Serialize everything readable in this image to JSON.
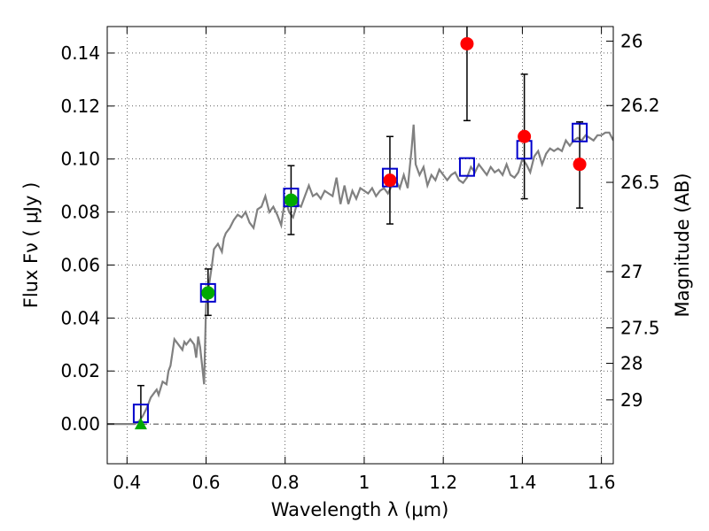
{
  "chart_data": {
    "type": "scatter",
    "xlabel": "Wavelength  λ (μm)",
    "ylabel": "Flux  Fν  ( μJy )",
    "ylabel_right": "Magnitude (AB)",
    "xlim": [
      0.35,
      1.63
    ],
    "ylim": [
      -0.015,
      0.15
    ],
    "grid": true,
    "x_ticks": [
      {
        "value": 0.4,
        "label": "0.4"
      },
      {
        "value": 0.6,
        "label": "0.6"
      },
      {
        "value": 0.8,
        "label": "0.8"
      },
      {
        "value": 1.0,
        "label": "1"
      },
      {
        "value": 1.2,
        "label": "1.2"
      },
      {
        "value": 1.4,
        "label": "1.4"
      },
      {
        "value": 1.6,
        "label": "1.6"
      }
    ],
    "y_ticks": [
      {
        "value": 0.0,
        "label": "0.00"
      },
      {
        "value": 0.02,
        "label": "0.02"
      },
      {
        "value": 0.04,
        "label": "0.04"
      },
      {
        "value": 0.06,
        "label": "0.06"
      },
      {
        "value": 0.08,
        "label": "0.08"
      },
      {
        "value": 0.1,
        "label": "0.10"
      },
      {
        "value": 0.12,
        "label": "0.12"
      },
      {
        "value": 0.14,
        "label": "0.14"
      }
    ],
    "right_ticks": [
      {
        "flux": 0.1445,
        "label": "26"
      },
      {
        "flux": 0.1202,
        "label": "26.2"
      },
      {
        "flux": 0.0912,
        "label": "26.5"
      },
      {
        "flux": 0.0575,
        "label": "27"
      },
      {
        "flux": 0.0363,
        "label": "27.5"
      },
      {
        "flux": 0.0229,
        "label": "28"
      },
      {
        "flux": 0.0091,
        "label": "29"
      }
    ],
    "zero_line": 0.0,
    "colors": {
      "model": "#808080",
      "model_photometry": "#0000cc",
      "observed_red": "#ff0000",
      "observed_green": "#00aa00",
      "error_bar": "#000000"
    },
    "series": [
      {
        "kind": "model_spectrum",
        "x": [
          0.35,
          0.37,
          0.39,
          0.405,
          0.415,
          0.42,
          0.43,
          0.44,
          0.45,
          0.46,
          0.47,
          0.475,
          0.48,
          0.49,
          0.5,
          0.505,
          0.51,
          0.515,
          0.52,
          0.53,
          0.54,
          0.545,
          0.55,
          0.56,
          0.57,
          0.575,
          0.58,
          0.585,
          0.59,
          0.595,
          0.6,
          0.605,
          0.61,
          0.615,
          0.62,
          0.63,
          0.64,
          0.645,
          0.65,
          0.66,
          0.67,
          0.68,
          0.69,
          0.7,
          0.71,
          0.72,
          0.73,
          0.74,
          0.75,
          0.76,
          0.77,
          0.78,
          0.79,
          0.8,
          0.81,
          0.82,
          0.83,
          0.84,
          0.85,
          0.86,
          0.87,
          0.88,
          0.89,
          0.9,
          0.91,
          0.92,
          0.93,
          0.94,
          0.95,
          0.96,
          0.97,
          0.98,
          0.99,
          1.0,
          1.01,
          1.02,
          1.03,
          1.04,
          1.05,
          1.06,
          1.07,
          1.08,
          1.09,
          1.1,
          1.11,
          1.12,
          1.125,
          1.13,
          1.14,
          1.15,
          1.16,
          1.17,
          1.18,
          1.19,
          1.2,
          1.21,
          1.22,
          1.23,
          1.24,
          1.25,
          1.26,
          1.27,
          1.28,
          1.29,
          1.3,
          1.31,
          1.32,
          1.33,
          1.34,
          1.35,
          1.36,
          1.37,
          1.38,
          1.39,
          1.4,
          1.41,
          1.42,
          1.43,
          1.44,
          1.45,
          1.46,
          1.47,
          1.48,
          1.49,
          1.5,
          1.51,
          1.52,
          1.53,
          1.54,
          1.55,
          1.56,
          1.57,
          1.58,
          1.59,
          1.6,
          1.61,
          1.62,
          1.63
        ],
        "y": [
          0.0,
          0.0,
          0.0,
          0.0,
          0.0,
          0.0,
          0.001,
          0.003,
          0.006,
          0.01,
          0.012,
          0.013,
          0.011,
          0.016,
          0.015,
          0.02,
          0.022,
          0.027,
          0.032,
          0.03,
          0.028,
          0.031,
          0.03,
          0.032,
          0.03,
          0.025,
          0.033,
          0.029,
          0.022,
          0.015,
          0.045,
          0.05,
          0.055,
          0.06,
          0.066,
          0.068,
          0.065,
          0.07,
          0.072,
          0.074,
          0.077,
          0.079,
          0.078,
          0.08,
          0.076,
          0.074,
          0.081,
          0.082,
          0.086,
          0.08,
          0.082,
          0.079,
          0.075,
          0.085,
          0.08,
          0.078,
          0.083,
          0.082,
          0.086,
          0.09,
          0.086,
          0.087,
          0.085,
          0.088,
          0.087,
          0.086,
          0.093,
          0.083,
          0.09,
          0.083,
          0.088,
          0.085,
          0.089,
          0.088,
          0.087,
          0.089,
          0.086,
          0.088,
          0.089,
          0.087,
          0.09,
          0.092,
          0.089,
          0.094,
          0.089,
          0.104,
          0.113,
          0.098,
          0.094,
          0.097,
          0.09,
          0.094,
          0.092,
          0.096,
          0.094,
          0.092,
          0.094,
          0.095,
          0.092,
          0.091,
          0.093,
          0.097,
          0.095,
          0.098,
          0.096,
          0.094,
          0.097,
          0.095,
          0.096,
          0.094,
          0.098,
          0.094,
          0.093,
          0.095,
          0.1,
          0.098,
          0.095,
          0.101,
          0.103,
          0.098,
          0.102,
          0.104,
          0.103,
          0.104,
          0.103,
          0.107,
          0.105,
          0.107,
          0.108,
          0.107,
          0.109,
          0.108,
          0.107,
          0.109,
          0.109,
          0.11,
          0.11,
          0.107
        ]
      },
      {
        "kind": "model_photometry",
        "x": [
          0.435,
          0.605,
          0.815,
          1.065,
          1.26,
          1.405,
          1.545
        ],
        "y": [
          0.004,
          0.0495,
          0.0855,
          0.093,
          0.097,
          0.1035,
          0.11
        ]
      },
      {
        "kind": "observed",
        "points": [
          {
            "x": 0.435,
            "y": 0.0,
            "marker": "triangle",
            "color": "green",
            "err_up": 0.0145,
            "err_down": 0.0
          },
          {
            "x": 0.605,
            "y": 0.0495,
            "marker": "circle",
            "color": "green",
            "err_up": 0.0585,
            "err_down": 0.041
          },
          {
            "x": 0.815,
            "y": 0.0845,
            "marker": "circle",
            "color": "green",
            "err_up": 0.0975,
            "err_down": 0.0715
          },
          {
            "x": 1.065,
            "y": 0.092,
            "marker": "circle",
            "color": "red",
            "err_up": 0.1085,
            "err_down": 0.0755
          },
          {
            "x": 1.26,
            "y": 0.1435,
            "marker": "circle",
            "color": "red",
            "err_up": 0.152,
            "err_down": 0.1145
          },
          {
            "x": 1.405,
            "y": 0.1085,
            "marker": "circle",
            "color": "red",
            "err_up": 0.132,
            "err_down": 0.085
          },
          {
            "x": 1.545,
            "y": 0.098,
            "marker": "circle",
            "color": "red",
            "err_up": 0.114,
            "err_down": 0.0815
          }
        ]
      }
    ]
  }
}
